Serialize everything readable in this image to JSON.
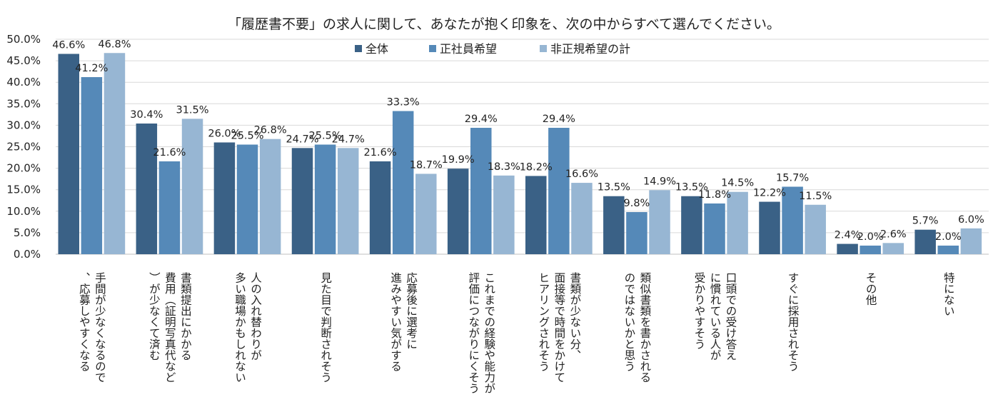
{
  "chart_data": {
    "type": "bar",
    "title": "「履歴書不要」の求人に関して、あなたが抱く印象を、次の中からすべて選んでください。",
    "xlabel": "",
    "ylabel": "",
    "ylim": [
      0,
      50
    ],
    "ytick_labels": [
      "0.0%",
      "5.0%",
      "10.0%",
      "15.0%",
      "20.0%",
      "25.0%",
      "30.0%",
      "35.0%",
      "40.0%",
      "45.0%",
      "50.0%"
    ],
    "grid": true,
    "legend_position": "top-center",
    "categories": [
      [
        "手間が少なくなるので",
        "、応募しやすくなる"
      ],
      [
        "書類提出にかかる",
        "費用（証明写真代など",
        "）が少なくて済む"
      ],
      [
        "人の入れ替わりが",
        "多い職場かもしれない"
      ],
      [
        "見た目で判断されそう"
      ],
      [
        "応募後に選考に",
        "進みやすい気がする"
      ],
      [
        "これまでの経験や能力が",
        "評価につながりにくそう"
      ],
      [
        "書類が少ない分、",
        "面接等で時間をかけて",
        "ヒアリングされそう"
      ],
      [
        "類似書類を書かされる",
        "のではないかと思う"
      ],
      [
        "口頭での受け答え",
        "に慣れている人が",
        "受かりやすそう"
      ],
      [
        "すぐに採用されそう"
      ],
      [
        "その他"
      ],
      [
        "特にない"
      ]
    ],
    "series": [
      {
        "name": "全体",
        "color": "#3a6186",
        "values": [
          46.6,
          30.4,
          26.0,
          24.7,
          21.6,
          19.9,
          18.2,
          13.5,
          13.5,
          12.2,
          2.4,
          5.7
        ],
        "labels": [
          "46.6%",
          "30.4%",
          "26.0%",
          "24.7%",
          "21.6%",
          "19.9%",
          "18.2%",
          "13.5%",
          "13.5%",
          "12.2%",
          "2.4%",
          "5.7%"
        ]
      },
      {
        "name": "正社員希望",
        "color": "#5589b8",
        "values": [
          41.2,
          21.6,
          25.5,
          25.5,
          33.3,
          29.4,
          29.4,
          9.8,
          11.8,
          15.7,
          2.0,
          2.0
        ],
        "labels": [
          "41.2%",
          "21.6%",
          "25.5%",
          "25.5%",
          "33.3%",
          "29.4%",
          "29.4%",
          "9.8%",
          "11.8%",
          "15.7%",
          "2.0%",
          "2.0%"
        ]
      },
      {
        "name": "非正規希望の計",
        "color": "#97b6d3",
        "values": [
          46.8,
          31.5,
          26.8,
          24.7,
          18.7,
          18.3,
          16.6,
          14.9,
          14.5,
          11.5,
          2.6,
          6.0
        ],
        "labels": [
          "46.8%",
          "31.5%",
          "26.8%",
          "24.7%",
          "18.7%",
          "18.3%",
          "16.6%",
          "14.9%",
          "14.5%",
          "11.5%",
          "2.6%",
          "6.0%"
        ]
      }
    ]
  }
}
